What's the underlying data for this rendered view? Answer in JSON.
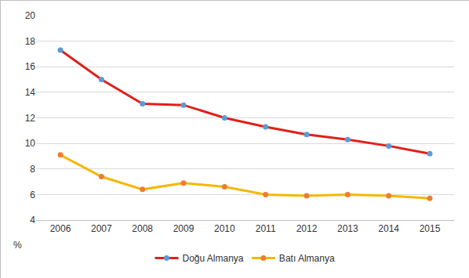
{
  "chart_data": {
    "type": "line",
    "categories": [
      "2006",
      "2007",
      "2008",
      "2009",
      "2010",
      "2011",
      "2012",
      "2013",
      "2014",
      "2015"
    ],
    "series": [
      {
        "name": "Doğu Almanya",
        "color": "#e0201b",
        "marker": "circle",
        "values": [
          17.3,
          15.0,
          13.1,
          13.0,
          12.0,
          11.3,
          10.7,
          10.3,
          9.8,
          9.2
        ]
      },
      {
        "name": "Batı Almanya",
        "color": "#f5b800",
        "marker": "circle",
        "values": [
          9.1,
          7.4,
          6.4,
          6.9,
          6.6,
          6.0,
          5.9,
          6.0,
          5.9,
          5.7
        ]
      }
    ],
    "ylabel": "%",
    "ylim": [
      4,
      20
    ],
    "yticks": [
      4,
      6,
      8,
      10,
      12,
      14,
      16,
      18,
      20
    ],
    "grid": true,
    "legend": "bottom"
  }
}
